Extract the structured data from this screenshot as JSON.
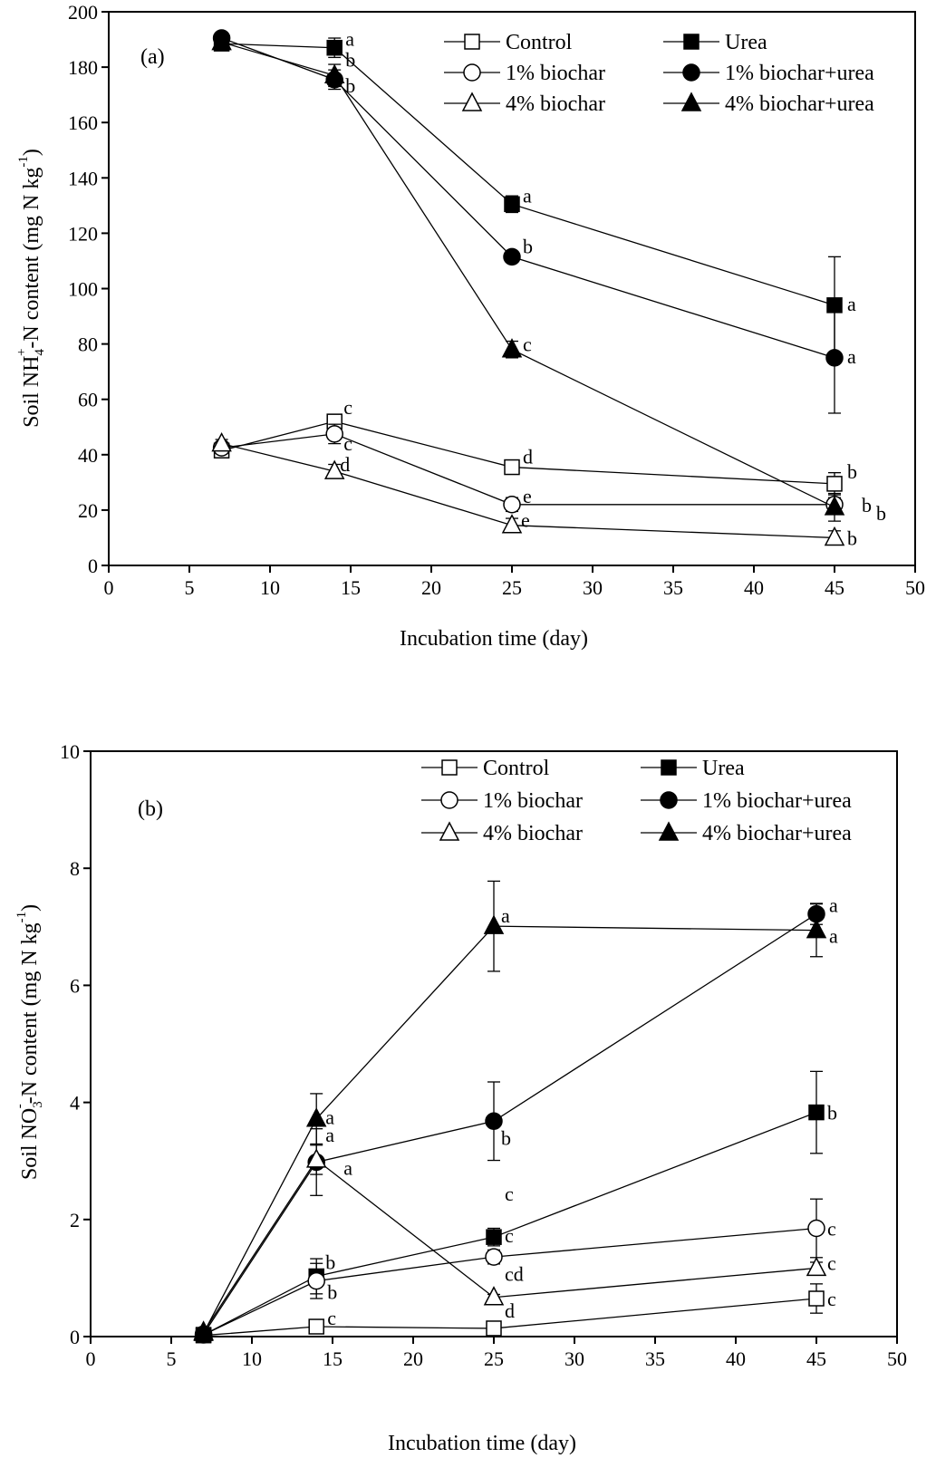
{
  "chart_data": [
    {
      "type": "line",
      "panel_label": "(a)",
      "title": "",
      "xlabel": "Incubation time (day)",
      "ylabel": {
        "prefix": "Soil NH",
        "sub": "4",
        "sup": "+",
        "suffix": "-N content (mg N kg",
        "unit_sup": "-1",
        "close": ")"
      },
      "xlim": [
        0,
        50
      ],
      "ylim": [
        0,
        200
      ],
      "xticks": [
        0,
        5,
        10,
        15,
        20,
        25,
        30,
        35,
        40,
        45,
        50
      ],
      "yticks": [
        0,
        20,
        40,
        60,
        80,
        100,
        120,
        140,
        160,
        180,
        200
      ],
      "grid": false,
      "legend_position": "top-right",
      "x": [
        7,
        14,
        25,
        45
      ],
      "series": [
        {
          "name": "Control",
          "marker": "square",
          "filled": false,
          "values": [
            41.5,
            52,
            35.5,
            29.5
          ],
          "errors": [
            1.5,
            1.5,
            1.5,
            4
          ],
          "labels": [
            "",
            "c",
            "d",
            "b"
          ]
        },
        {
          "name": "Urea",
          "marker": "square",
          "filled": true,
          "values": [
            188.5,
            187,
            130.5,
            94
          ],
          "errors": [
            1,
            3.5,
            3,
            17.5
          ],
          "labels": [
            "",
            "a",
            "a",
            "a"
          ]
        },
        {
          "name": "1% biochar",
          "marker": "circle",
          "filled": false,
          "values": [
            42.5,
            47.5,
            22,
            22
          ],
          "errors": [
            1,
            3.5,
            2.5,
            2.5
          ],
          "labels": [
            "",
            "c",
            "e",
            "b"
          ]
        },
        {
          "name": "1% biochar+urea",
          "marker": "circle",
          "filled": true,
          "values": [
            190.5,
            175.5,
            111.5,
            75
          ],
          "errors": [
            1,
            3.5,
            1.5,
            20
          ],
          "labels": [
            "",
            "b",
            "b",
            "a"
          ]
        },
        {
          "name": "4% biochar",
          "marker": "triangle",
          "filled": false,
          "values": [
            44,
            34,
            14.5,
            10
          ],
          "errors": [
            1.5,
            2.5,
            2.5,
            2.5
          ],
          "labels": [
            "",
            "d",
            "e",
            "b"
          ]
        },
        {
          "name": "4% biochar+urea",
          "marker": "triangle",
          "filled": true,
          "values": [
            189,
            177,
            78,
            21
          ],
          "errors": [
            1,
            4,
            3,
            5
          ],
          "labels": [
            "",
            "b",
            "c",
            "b"
          ]
        }
      ]
    },
    {
      "type": "line",
      "panel_label": "(b)",
      "title": "",
      "xlabel": "Incubation time (day)",
      "ylabel": {
        "prefix": "Soil NO",
        "sub": "3",
        "sup": "-",
        "suffix": "-N content (mg N kg",
        "unit_sup": "-1",
        "close": ")"
      },
      "xlim": [
        0,
        50
      ],
      "ylim": [
        0,
        10
      ],
      "xticks": [
        0,
        5,
        10,
        15,
        20,
        25,
        30,
        35,
        40,
        45,
        50
      ],
      "yticks": [
        0,
        2,
        4,
        6,
        8,
        10
      ],
      "grid": false,
      "legend_position": "top-right",
      "x": [
        7,
        14,
        25,
        45
      ],
      "series": [
        {
          "name": "Control",
          "marker": "square",
          "filled": false,
          "values": [
            0.02,
            0.17,
            0.14,
            0.65
          ],
          "errors": [
            0.02,
            0.05,
            0.05,
            0.25
          ],
          "labels": [
            "",
            "c",
            "d",
            "c"
          ]
        },
        {
          "name": "Urea",
          "marker": "square",
          "filled": true,
          "values": [
            0.03,
            1.03,
            1.7,
            3.83
          ],
          "errors": [
            0.02,
            0.3,
            0.15,
            0.7
          ],
          "labels": [
            "",
            "b",
            "c",
            "b"
          ]
        },
        {
          "name": "1% biochar",
          "marker": "circle",
          "filled": false,
          "values": [
            0.03,
            0.95,
            1.36,
            1.85
          ],
          "errors": [
            0.02,
            0.3,
            0.12,
            0.5
          ],
          "labels": [
            "",
            "b",
            "c",
            "c"
          ]
        },
        {
          "name": "1% biochar+urea",
          "marker": "circle",
          "filled": true,
          "values": [
            0.04,
            2.98,
            3.68,
            7.22
          ],
          "errors": [
            0.02,
            0.57,
            0.67,
            0.18
          ],
          "labels": [
            "",
            "a",
            "b",
            "a"
          ]
        },
        {
          "name": "4% biochar",
          "marker": "triangle",
          "filled": false,
          "values": [
            0.08,
            3.02,
            0.67,
            1.17
          ],
          "errors": [
            0.02,
            0.25,
            0.05,
            0.1
          ],
          "labels": [
            "",
            "a",
            "cd",
            "c"
          ]
        },
        {
          "name": "4% biochar+urea",
          "marker": "triangle",
          "filled": true,
          "values": [
            0.06,
            3.72,
            7.01,
            6.94
          ],
          "errors": [
            0.02,
            0.43,
            0.77,
            0.45
          ],
          "labels": [
            "",
            "a",
            "a",
            "a"
          ]
        }
      ]
    }
  ]
}
